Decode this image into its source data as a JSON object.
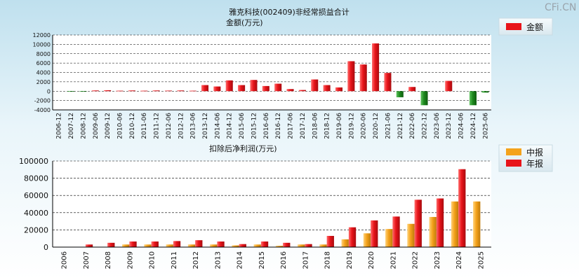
{
  "watermark": "CFi.CN",
  "chart_data": [
    {
      "type": "bar",
      "title": "雅克科技(002409)非经常损益合计",
      "subtitle": "金额(万元)",
      "categories": [
        "2006-12",
        "2007-12",
        "2008-12",
        "2009-06",
        "2009-12",
        "2010-06",
        "2010-12",
        "2011-06",
        "2011-12",
        "2012-06",
        "2012-12",
        "2013-06",
        "2013-12",
        "2014-06",
        "2014-12",
        "2015-06",
        "2015-12",
        "2016-06",
        "2016-12",
        "2017-06",
        "2017-12",
        "2018-06",
        "2018-12",
        "2019-06",
        "2019-12",
        "2020-06",
        "2020-12",
        "2021-06",
        "2021-12",
        "2022-06",
        "2022-12",
        "2023-06",
        "2023-12",
        "2024-06",
        "2024-12",
        "2025-06"
      ],
      "series": [
        {
          "name": "金额",
          "values": [
            0,
            -50,
            -100,
            150,
            200,
            100,
            150,
            100,
            150,
            120,
            150,
            100,
            1300,
            1000,
            2300,
            1300,
            2400,
            1100,
            1600,
            450,
            250,
            2500,
            1300,
            800,
            6400,
            5700,
            10200,
            3900,
            -1300,
            900,
            -3000,
            0,
            2200,
            0,
            -3000,
            -300
          ]
        }
      ],
      "positive_color": "#e8141a",
      "negative_color": "#1e8a1e",
      "ylim": [
        -4000,
        12000
      ],
      "yticks": [
        "12000",
        "10000",
        "8000",
        "6000",
        "4000",
        "2000",
        "0",
        "-2000",
        "-4000"
      ],
      "legend": [
        "金额"
      ],
      "legend_position": "top-right",
      "grid": true
    },
    {
      "type": "bar",
      "title": "扣除后净利润(万元)",
      "categories": [
        "2006",
        "2007",
        "2008",
        "2009",
        "2010",
        "2011",
        "2012",
        "2013",
        "2014",
        "2015",
        "2016",
        "2017",
        "2018",
        "2019",
        "2020",
        "2021",
        "2022",
        "2023",
        "2024",
        "2025"
      ],
      "series": [
        {
          "name": "中报",
          "color": "#f4a21b",
          "values": [
            0,
            0,
            0,
            3000,
            3000,
            3000,
            3000,
            3000,
            2000,
            3000,
            1500,
            3000,
            3000,
            9000,
            16000,
            21000,
            27000,
            35000,
            53000,
            53000
          ]
        },
        {
          "name": "年报",
          "color": "#e8141a",
          "values": [
            0,
            3000,
            5000,
            6500,
            6500,
            7000,
            8000,
            6500,
            3500,
            6500,
            5000,
            3500,
            13000,
            23000,
            31000,
            35500,
            55000,
            56500,
            90500,
            null
          ]
        }
      ],
      "ylim": [
        0,
        100000
      ],
      "yticks": [
        "100000",
        "80000",
        "60000",
        "40000",
        "20000",
        "0"
      ],
      "legend": [
        "中报",
        "年报"
      ],
      "legend_position": "top-right",
      "grid": true
    }
  ]
}
